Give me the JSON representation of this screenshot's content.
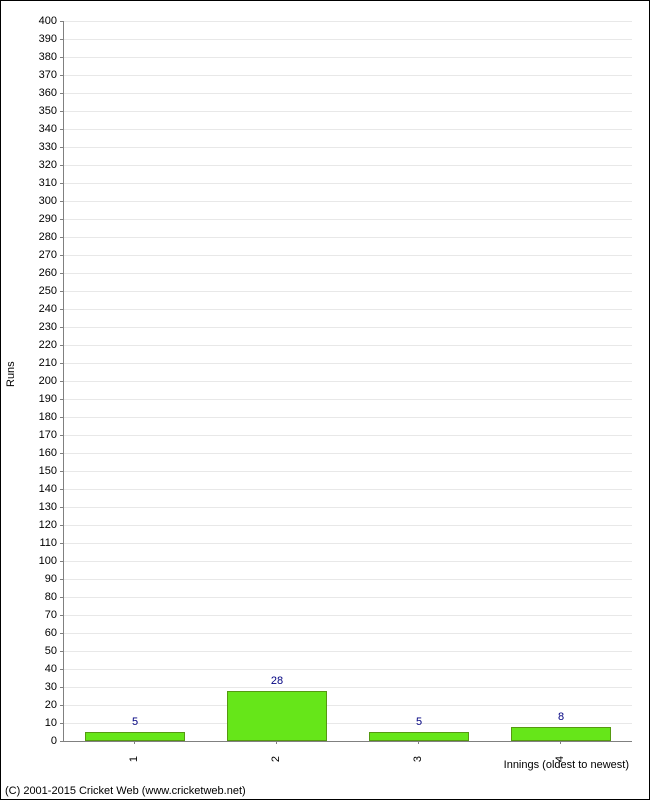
{
  "chart": {
    "type": "bar",
    "ylabel": "Runs",
    "xlabel": "Innings (oldest to newest)",
    "ylim": [
      0,
      400
    ],
    "ytick_step": 10,
    "categories": [
      "1",
      "2",
      "3",
      "4"
    ],
    "values": [
      5,
      28,
      5,
      8
    ],
    "bar_color": "#66e619",
    "bar_border_color": "#559911",
    "value_label_color": "#000080",
    "grid_color": "#e8e8e8",
    "axis_color": "#808080",
    "background_color": "#ffffff",
    "frame_border_color": "#000000",
    "tick_fontsize": 11,
    "label_fontsize": 11,
    "bar_width_ratio": 0.7
  },
  "copyright": "(C) 2001-2015 Cricket Web (www.cricketweb.net)"
}
